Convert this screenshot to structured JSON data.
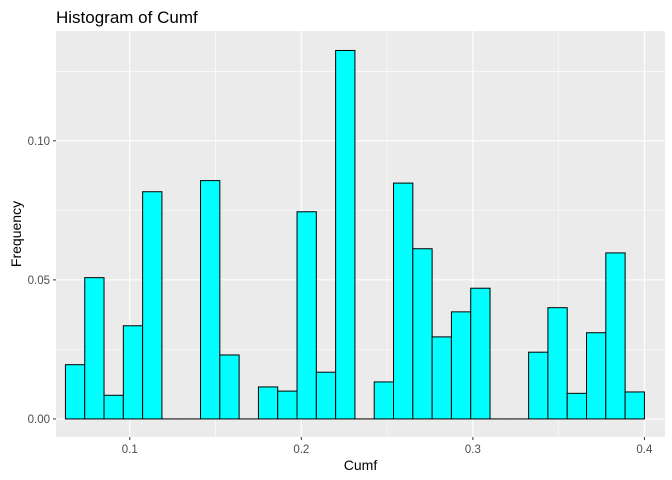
{
  "chart_data": {
    "type": "bar",
    "title": "Histogram of Cumf",
    "xlabel": "Cumf",
    "ylabel": "Frequency",
    "xlim": [
      0.057,
      0.412
    ],
    "ylim": [
      -0.0065,
      0.1395
    ],
    "x_ticks": [
      {
        "value": 0.1,
        "label": "0.1"
      },
      {
        "value": 0.2,
        "label": "0.2"
      },
      {
        "value": 0.3,
        "label": "0.3"
      },
      {
        "value": 0.4,
        "label": "0.4"
      }
    ],
    "y_ticks": [
      {
        "value": 0.0,
        "label": "0.00"
      },
      {
        "value": 0.05,
        "label": "0.05"
      },
      {
        "value": 0.1,
        "label": "0.10"
      }
    ],
    "bin_start": 0.0625,
    "bin_width": 0.01125,
    "values": [
      0.0195,
      0.0508,
      0.0085,
      0.0335,
      0.0817,
      0,
      0,
      0.0857,
      0.023,
      0,
      0.0115,
      0.01,
      0.0745,
      0.0168,
      0.1325,
      0,
      0.0133,
      0.0848,
      0.0612,
      0.0295,
      0.0385,
      0.047,
      0,
      0,
      0.024,
      0.04,
      0.0092,
      0.031,
      0.0597,
      0.0097
    ],
    "bar_fill": "#00ffff",
    "bar_stroke": "#000000",
    "panel_background": "#ebebeb",
    "grid": true,
    "legend": "none"
  }
}
